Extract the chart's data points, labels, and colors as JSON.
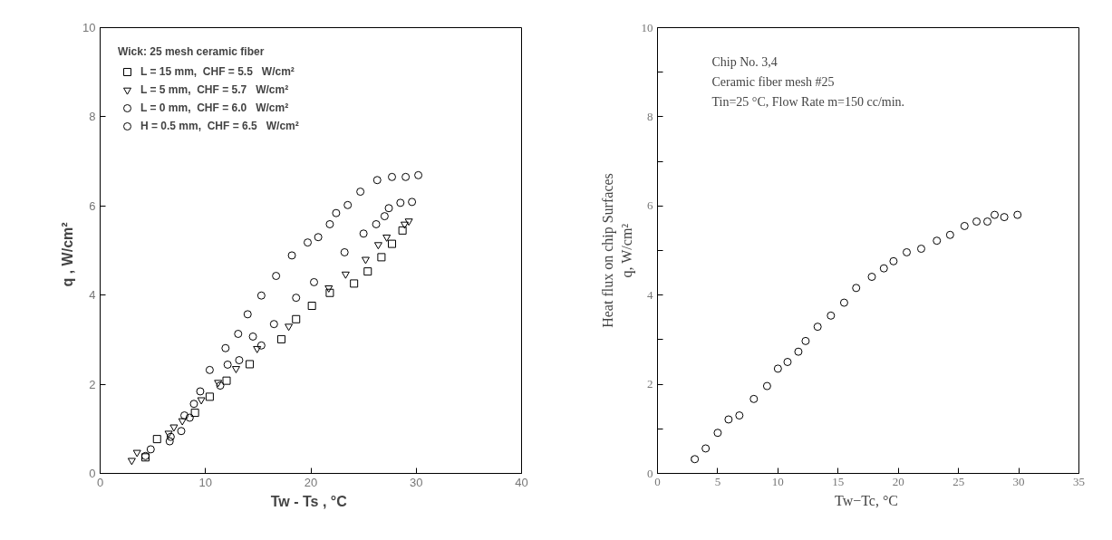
{
  "chart_data": [
    {
      "type": "scatter",
      "xlabel": "Tw - Ts ,  °C",
      "ylabel": "q ,   W/cm²",
      "legend_title": "Wick: 25 mesh ceramic fiber",
      "legend": "top left",
      "grid": false,
      "xlim": [
        0,
        40
      ],
      "ylim": [
        0,
        10
      ],
      "xticks": [
        0,
        10,
        20,
        30,
        40
      ],
      "yticks": [
        0,
        2,
        4,
        6,
        8,
        10
      ],
      "series": [
        {
          "name": "L = 15 mm,  CHF = 5.5   W/cm²",
          "color": "#000000",
          "marker": "square",
          "x": [
            4.3,
            5.4,
            9.0,
            10.4,
            12.0,
            14.2,
            17.2,
            18.6,
            20.1,
            21.8,
            24.1,
            25.4,
            26.7,
            27.7,
            28.7
          ],
          "values": [
            0.36,
            0.77,
            1.36,
            1.72,
            2.08,
            2.45,
            3.01,
            3.46,
            3.76,
            4.05,
            4.26,
            4.53,
            4.85,
            5.15,
            5.45
          ]
        },
        {
          "name": "L = 5 mm,  CHF = 5.7   W/cm²",
          "color": "#000000",
          "marker": "triangle",
          "x": [
            3.0,
            3.5,
            6.5,
            7.0,
            7.8,
            9.6,
            11.2,
            12.9,
            14.9,
            17.9,
            21.7,
            23.3,
            25.2,
            26.4,
            27.2,
            28.9,
            29.3
          ],
          "values": [
            0.29,
            0.47,
            0.9,
            1.04,
            1.18,
            1.65,
            2.04,
            2.35,
            2.8,
            3.3,
            4.16,
            4.47,
            4.8,
            5.13,
            5.3,
            5.59,
            5.66
          ]
        },
        {
          "name": "L = 0 mm,  CHF = 6.0   W/cm²",
          "color": "#000000",
          "marker": "circle",
          "x": [
            4.3,
            6.6,
            7.7,
            8.5,
            11.4,
            12.1,
            13.2,
            14.5,
            15.3,
            16.5,
            18.6,
            20.3,
            23.2,
            25.0,
            26.2,
            27.0,
            27.4,
            28.5,
            29.6
          ],
          "values": [
            0.39,
            0.72,
            0.95,
            1.25,
            1.97,
            2.44,
            2.54,
            3.07,
            2.87,
            3.35,
            3.94,
            4.29,
            4.96,
            5.38,
            5.59,
            5.77,
            5.95,
            6.07,
            6.09
          ]
        },
        {
          "name": "H = 0.5 mm,  CHF = 6.5   W/cm²",
          "color": "#000000",
          "marker": "circle",
          "x": [
            4.8,
            6.7,
            8.0,
            8.9,
            9.5,
            10.4,
            11.9,
            13.1,
            14.0,
            15.3,
            16.7,
            18.2,
            19.7,
            20.7,
            21.8,
            22.4,
            23.5,
            24.7,
            26.3,
            27.7,
            29.0,
            30.2
          ],
          "values": [
            0.54,
            0.82,
            1.3,
            1.56,
            1.84,
            2.32,
            2.81,
            3.13,
            3.57,
            3.99,
            4.43,
            4.89,
            5.18,
            5.3,
            5.59,
            5.84,
            6.02,
            6.32,
            6.58,
            6.65,
            6.65,
            6.69
          ]
        }
      ]
    },
    {
      "type": "scatter",
      "xlabel": "Tw−Tc,  °C",
      "ylabel": "Heat flux on chip Surfaces\nq, W/cm²",
      "legend": false,
      "grid": false,
      "marker": "circle",
      "annotations": [
        "Chip No. 3,4",
        "Ceramic fiber mesh #25",
        "Tin=25 °C, Flow Rate m=150 cc/min."
      ],
      "xlim": [
        0,
        35
      ],
      "ylim": [
        0,
        10
      ],
      "xticks": [
        0,
        5,
        10,
        15,
        20,
        25,
        30,
        35
      ],
      "yticks": [
        0,
        {
          "value": 1,
          "label": null
        },
        2,
        {
          "value": 3,
          "label": null
        },
        4,
        {
          "value": 5,
          "label": null
        },
        6,
        {
          "value": 7,
          "label": null
        },
        8,
        {
          "value": 9,
          "label": null
        },
        10
      ],
      "series": [
        {
          "color": "#000000",
          "x": [
            3.1,
            4.0,
            5.0,
            5.9,
            6.8,
            8.0,
            9.1,
            10.0,
            10.8,
            11.7,
            12.3,
            13.3,
            14.4,
            15.5,
            16.5,
            17.8,
            18.8,
            19.6,
            20.7,
            21.9,
            23.2,
            24.3,
            25.5,
            26.5,
            27.4,
            28.0,
            28.8,
            29.9
          ],
          "values": [
            0.32,
            0.56,
            0.91,
            1.21,
            1.3,
            1.67,
            1.96,
            2.35,
            2.5,
            2.73,
            2.97,
            3.29,
            3.54,
            3.83,
            4.16,
            4.41,
            4.6,
            4.76,
            4.96,
            5.04,
            5.22,
            5.35,
            5.55,
            5.65,
            5.65,
            5.8,
            5.75,
            5.8
          ]
        }
      ]
    }
  ]
}
